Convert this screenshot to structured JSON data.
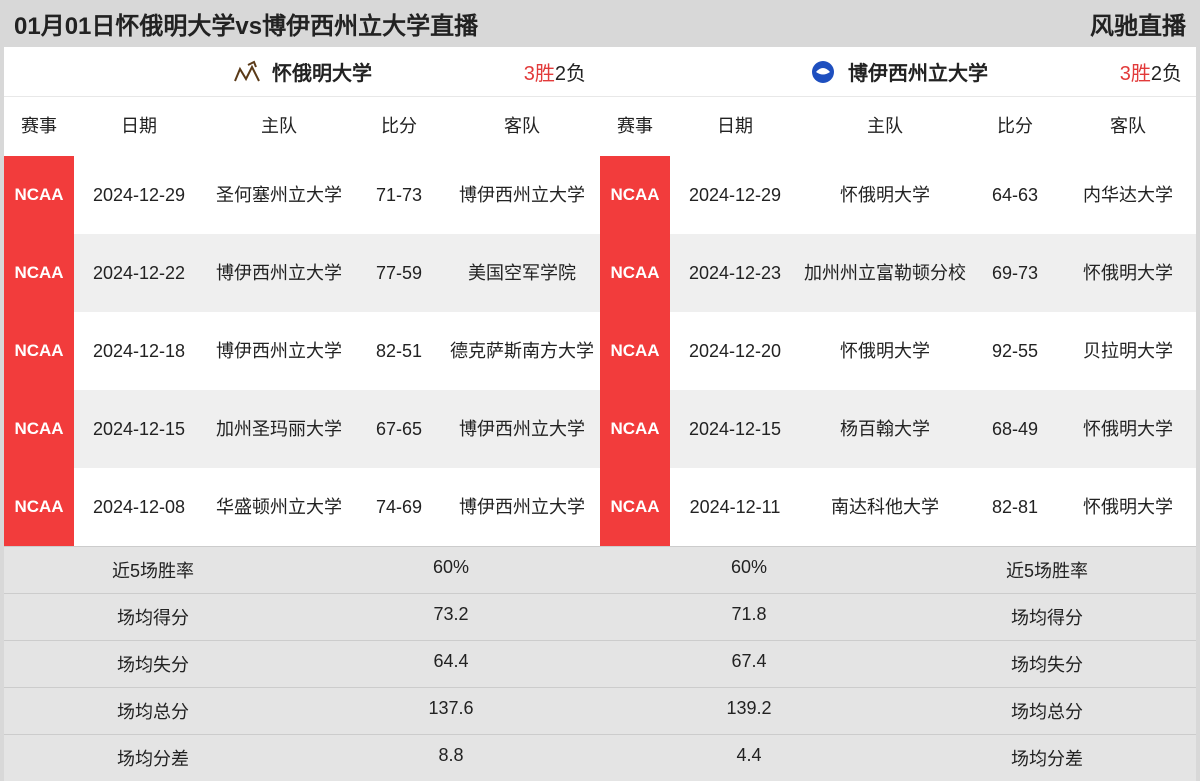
{
  "header": {
    "title": "01月01日怀俄明大学vs博伊西州立大学直播",
    "brand": "风驰直播"
  },
  "columns": [
    "赛事",
    "日期",
    "主队",
    "比分",
    "客队"
  ],
  "badge_label": "NCAA",
  "badge_color": "#f23c3c",
  "colors": {
    "page_bg": "#d8d8d8",
    "row_alt": "#efefef",
    "stat_bg": "#e4e4e4",
    "win_color": "#e23a3a"
  },
  "left": {
    "team_name": "怀俄明大学",
    "logo_color": "#5a3a18",
    "record_wins": "3胜",
    "record_losses": "2负",
    "games": [
      {
        "date": "2024-12-29",
        "home": "圣何塞州立大学",
        "score": "71-73",
        "away": "博伊西州立大学"
      },
      {
        "date": "2024-12-22",
        "home": "博伊西州立大学",
        "score": "77-59",
        "away": "美国空军学院"
      },
      {
        "date": "2024-12-18",
        "home": "博伊西州立大学",
        "score": "82-51",
        "away": "德克萨斯南方大学"
      },
      {
        "date": "2024-12-15",
        "home": "加州圣玛丽大学",
        "score": "67-65",
        "away": "博伊西州立大学"
      },
      {
        "date": "2024-12-08",
        "home": "华盛顿州立大学",
        "score": "74-69",
        "away": "博伊西州立大学"
      }
    ],
    "stats": [
      {
        "label": "近5场胜率",
        "value": "60%"
      },
      {
        "label": "场均得分",
        "value": "73.2"
      },
      {
        "label": "场均失分",
        "value": "64.4"
      },
      {
        "label": "场均总分",
        "value": "137.6"
      },
      {
        "label": "场均分差",
        "value": "8.8"
      }
    ]
  },
  "right": {
    "team_name": "博伊西州立大学",
    "logo_color": "#1e4fbf",
    "record_wins": "3胜",
    "record_losses": "2负",
    "games": [
      {
        "date": "2024-12-29",
        "home": "怀俄明大学",
        "score": "64-63",
        "away": "内华达大学"
      },
      {
        "date": "2024-12-23",
        "home": "加州州立富勒顿分校",
        "score": "69-73",
        "away": "怀俄明大学"
      },
      {
        "date": "2024-12-20",
        "home": "怀俄明大学",
        "score": "92-55",
        "away": "贝拉明大学"
      },
      {
        "date": "2024-12-15",
        "home": "杨百翰大学",
        "score": "68-49",
        "away": "怀俄明大学"
      },
      {
        "date": "2024-12-11",
        "home": "南达科他大学",
        "score": "82-81",
        "away": "怀俄明大学"
      }
    ],
    "stats": [
      {
        "label": "近5场胜率",
        "value": "60%"
      },
      {
        "label": "场均得分",
        "value": "71.8"
      },
      {
        "label": "场均失分",
        "value": "67.4"
      },
      {
        "label": "场均总分",
        "value": "139.2"
      },
      {
        "label": "场均分差",
        "value": "4.4"
      }
    ]
  }
}
